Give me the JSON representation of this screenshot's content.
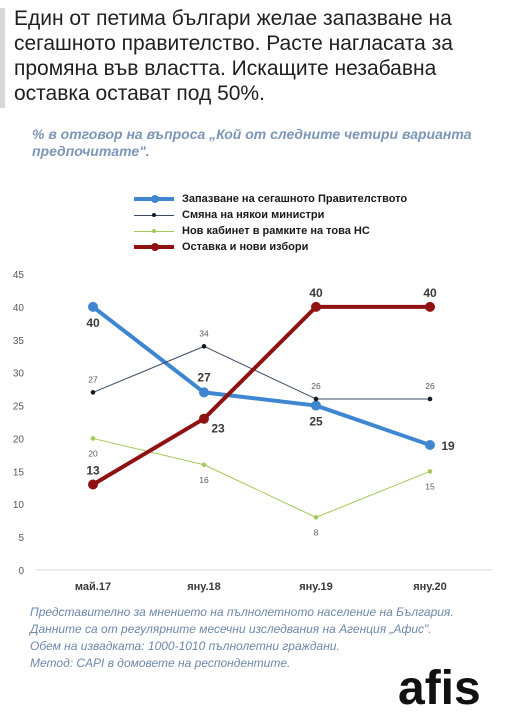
{
  "headline": "Един от петима българи желае запазване на сегашното правителство. Расте нагласата за промяна във властта. Искащите незабавна оставка остават под 50%.",
  "subtitle": "% в отговор на въпроса „Кой от следните четири варианта предпочитате\".",
  "footnote": {
    "line1": "Представително за мнението на пълнолетното население на България.",
    "line2": "Данните са от регулярните месечни изследвания на Агенция „Афис\".",
    "line3": "Обем на извадката: 1000-1010 пълнолетни граждани.",
    "line4": "Метод: CAPI в домовете на респондентите."
  },
  "logo_text": "afis",
  "chart_data": {
    "type": "line",
    "categories": [
      "май.17",
      "яну.18",
      "яну.19",
      "яну.20"
    ],
    "ylim": [
      0,
      45
    ],
    "yticks": [
      0,
      5,
      10,
      15,
      20,
      25,
      30,
      35,
      40,
      45
    ],
    "grid": false,
    "legend_position": "top",
    "series": [
      {
        "name": "Запазване на сегашното Правителството",
        "values": [
          40,
          27,
          25,
          19
        ],
        "color": "#3f86d0",
        "weight": "thick"
      },
      {
        "name": "Смяна на някои министри",
        "values": [
          27,
          34,
          26,
          26
        ],
        "color": "#3d4a66",
        "weight": "thin"
      },
      {
        "name": "Нов кабинет в рамките на това НС",
        "values": [
          20,
          16,
          8,
          15
        ],
        "color": "#a5c85a",
        "weight": "thin"
      },
      {
        "name": "Оставка и нови избори",
        "values": [
          13,
          23,
          40,
          40
        ],
        "color": "#8f1111",
        "weight": "thick"
      }
    ]
  }
}
